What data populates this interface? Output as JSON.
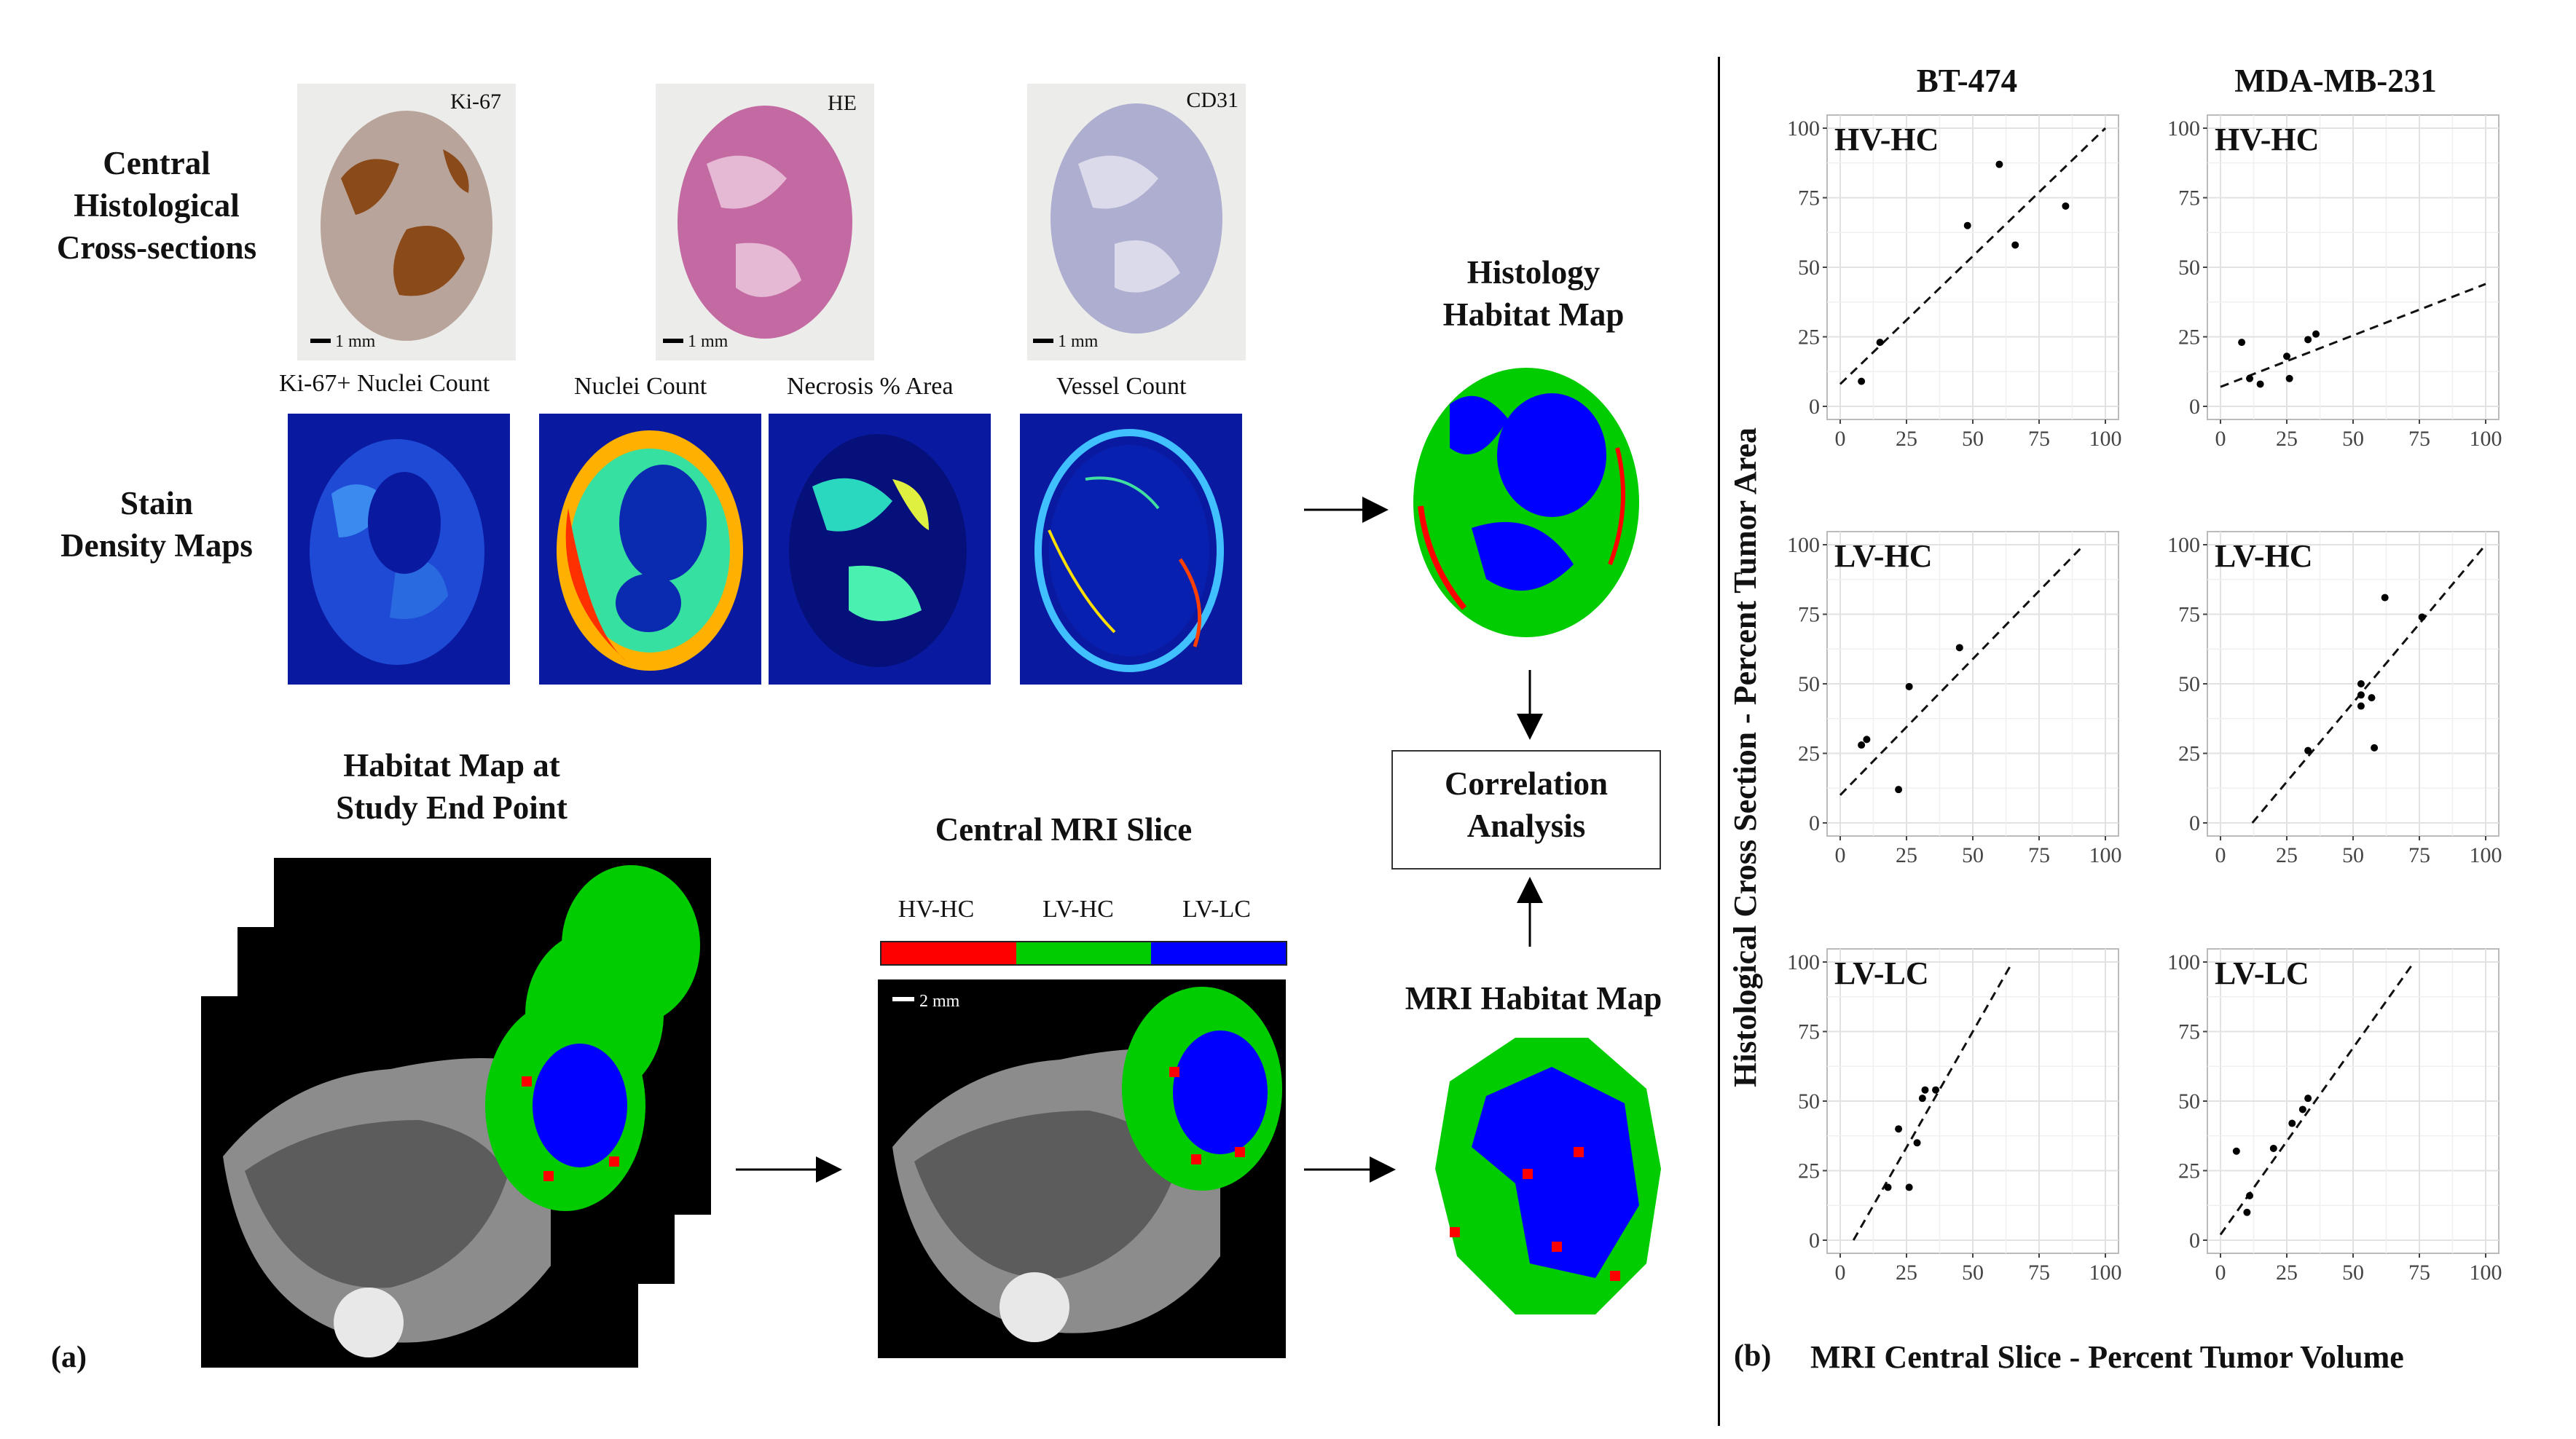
{
  "panel_a": {
    "label": "(a)",
    "histo_label": [
      "Central",
      "Histological",
      "Cross-sections"
    ],
    "stain_label": [
      "Stain",
      "Density Maps"
    ],
    "stains": [
      {
        "name": "Ki-67",
        "scale": "1 mm",
        "fill": "#b57a3e"
      },
      {
        "name": "HE",
        "scale": "1 mm",
        "fill": "#c874a8"
      },
      {
        "name": "CD31",
        "scale": "1 mm",
        "fill": "#bcbcd8"
      }
    ],
    "density_maps": [
      "Ki-67+ Nuclei Count",
      "Nuclei Count",
      "Necrosis % Area",
      "Vessel Count"
    ],
    "histology_habitat_title": [
      "Histology",
      "Habitat Map"
    ],
    "correlation_box": [
      "Correlation",
      "Analysis"
    ],
    "habitat_endpoint_title": [
      "Habitat Map at",
      "Study End Point"
    ],
    "central_mri_title": "Central MRI Slice",
    "mri_scale": "2 mm",
    "legend": [
      {
        "label": "HV-HC",
        "color": "#ff0000"
      },
      {
        "label": "LV-HC",
        "color": "#00cc00"
      },
      {
        "label": "LV-LC",
        "color": "#0000ff"
      }
    ],
    "mri_habitat_title": "MRI Habitat Map"
  },
  "panel_b": {
    "label": "(b)",
    "col_titles": [
      "BT-474",
      "MDA-MB-231"
    ],
    "ylabel": "Histological Cross Section - Percent Tumor Area",
    "xlabel": "MRI Central Slice - Percent Tumor Volume",
    "tick_labels": [
      "0",
      "25",
      "50",
      "75",
      "100"
    ]
  },
  "chart_data": [
    {
      "type": "scatter",
      "title": "HV-HC",
      "group": "BT-474",
      "xlim": [
        0,
        100
      ],
      "ylim": [
        0,
        100
      ],
      "grid": true,
      "points": [
        [
          8,
          9
        ],
        [
          15,
          23
        ],
        [
          48,
          65
        ],
        [
          60,
          87
        ],
        [
          66,
          58
        ],
        [
          85,
          72
        ]
      ],
      "fit": [
        [
          0,
          8
        ],
        [
          100,
          100
        ]
      ]
    },
    {
      "type": "scatter",
      "title": "HV-HC",
      "group": "MDA-MB-231",
      "xlim": [
        0,
        100
      ],
      "ylim": [
        0,
        100
      ],
      "grid": true,
      "points": [
        [
          8,
          23
        ],
        [
          11,
          10
        ],
        [
          15,
          8
        ],
        [
          25,
          18
        ],
        [
          26,
          10
        ],
        [
          33,
          24
        ],
        [
          36,
          26
        ]
      ],
      "fit": [
        [
          0,
          7
        ],
        [
          100,
          44
        ]
      ]
    },
    {
      "type": "scatter",
      "title": "LV-HC",
      "group": "BT-474",
      "xlim": [
        0,
        100
      ],
      "ylim": [
        0,
        100
      ],
      "grid": true,
      "points": [
        [
          8,
          28
        ],
        [
          10,
          30
        ],
        [
          22,
          12
        ],
        [
          26,
          49
        ],
        [
          45,
          63
        ]
      ],
      "fit": [
        [
          0,
          10
        ],
        [
          92,
          100
        ]
      ]
    },
    {
      "type": "scatter",
      "title": "LV-HC",
      "group": "MDA-MB-231",
      "xlim": [
        0,
        100
      ],
      "ylim": [
        0,
        100
      ],
      "grid": true,
      "points": [
        [
          33,
          26
        ],
        [
          53,
          50
        ],
        [
          53,
          46
        ],
        [
          53,
          42
        ],
        [
          57,
          45
        ],
        [
          58,
          27
        ],
        [
          62,
          81
        ],
        [
          76,
          74
        ]
      ],
      "fit": [
        [
          12,
          0
        ],
        [
          100,
          100
        ]
      ]
    },
    {
      "type": "scatter",
      "title": "LV-LC",
      "group": "BT-474",
      "xlim": [
        0,
        100
      ],
      "ylim": [
        0,
        100
      ],
      "grid": true,
      "points": [
        [
          18,
          19
        ],
        [
          22,
          40
        ],
        [
          26,
          19
        ],
        [
          29,
          35
        ],
        [
          31,
          51
        ],
        [
          32,
          54
        ],
        [
          36,
          54
        ]
      ],
      "fit": [
        [
          5,
          0
        ],
        [
          65,
          100
        ]
      ]
    },
    {
      "type": "scatter",
      "title": "LV-LC",
      "group": "MDA-MB-231",
      "xlim": [
        0,
        100
      ],
      "ylim": [
        0,
        100
      ],
      "grid": true,
      "points": [
        [
          6,
          32
        ],
        [
          10,
          10
        ],
        [
          11,
          16
        ],
        [
          20,
          33
        ],
        [
          27,
          42
        ],
        [
          31,
          47
        ],
        [
          33,
          51
        ]
      ],
      "fit": [
        [
          0,
          2
        ],
        [
          73,
          100
        ]
      ]
    }
  ]
}
